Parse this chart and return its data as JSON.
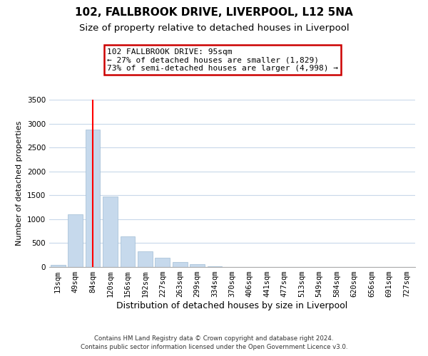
{
  "title": "102, FALLBROOK DRIVE, LIVERPOOL, L12 5NA",
  "subtitle": "Size of property relative to detached houses in Liverpool",
  "xlabel": "Distribution of detached houses by size in Liverpool",
  "ylabel": "Number of detached properties",
  "categories": [
    "13sqm",
    "49sqm",
    "84sqm",
    "120sqm",
    "156sqm",
    "192sqm",
    "227sqm",
    "263sqm",
    "299sqm",
    "334sqm",
    "370sqm",
    "406sqm",
    "441sqm",
    "477sqm",
    "513sqm",
    "549sqm",
    "584sqm",
    "620sqm",
    "656sqm",
    "691sqm",
    "727sqm"
  ],
  "values": [
    40,
    1095,
    2870,
    1475,
    635,
    330,
    195,
    100,
    60,
    20,
    5,
    2,
    1,
    0,
    0,
    0,
    0,
    0,
    0,
    0,
    0
  ],
  "bar_color": "#c6d9ec",
  "bar_edge_color": "#a0bdd4",
  "red_line_index": 2,
  "annotation_title": "102 FALLBROOK DRIVE: 95sqm",
  "annotation_line1": "← 27% of detached houses are smaller (1,829)",
  "annotation_line2": "73% of semi-detached houses are larger (4,998) →",
  "ylim": [
    0,
    3500
  ],
  "yticks": [
    0,
    500,
    1000,
    1500,
    2000,
    2500,
    3000,
    3500
  ],
  "footnote1": "Contains HM Land Registry data © Crown copyright and database right 2024.",
  "footnote2": "Contains public sector information licensed under the Open Government Licence v3.0.",
  "background_color": "#ffffff",
  "grid_color": "#c8d8ea",
  "annotation_box_edge": "#cc0000",
  "title_fontsize": 11,
  "subtitle_fontsize": 9.5,
  "xlabel_fontsize": 9,
  "ylabel_fontsize": 8,
  "tick_fontsize": 7.5,
  "annotation_fontsize": 8
}
